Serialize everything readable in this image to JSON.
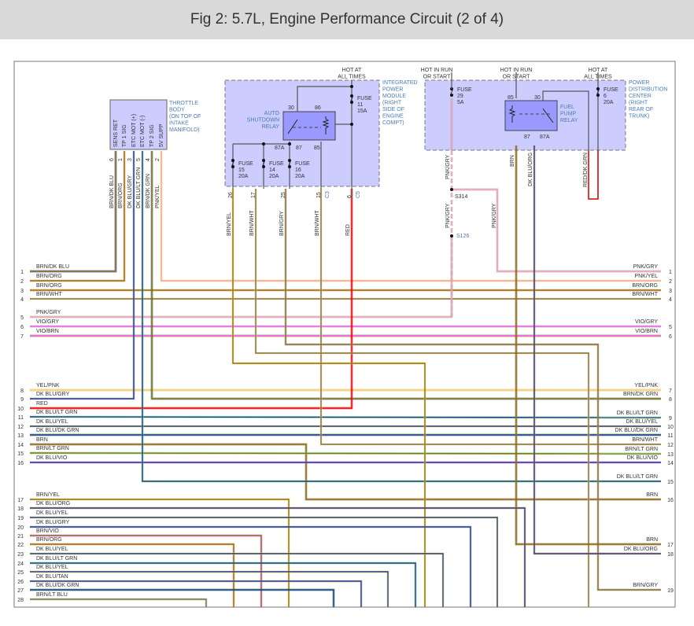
{
  "title": "Fig 2: 5.7L, Engine Performance Circuit (2 of 4)",
  "colors": {
    "BRN": "#8c6d1f",
    "ORG": "#f0a040",
    "DK BLU": "#1f3a93",
    "LT GRN": "#6ad96a",
    "YEL": "#f2dc4a",
    "PNK": "#f5a0b0",
    "GRY": "#a8a8a8",
    "VIO": "#f060f0",
    "RED": "#e81010",
    "WHT": "#d8d8d8",
    "DK GRN": "#2a7a4a",
    "TAN": "#d2b48c",
    "LT BLU": "#8cc8e8",
    "component_fill": "#ccccff",
    "relay_fill": "#9999ff",
    "label_blue": "#4a7ab8"
  },
  "throttle_body": {
    "label": [
      "THROTTLE",
      "BODY",
      "(ON TOP OF",
      "INTAKE",
      "MANIFOLD)"
    ],
    "pins": [
      {
        "name": "SENS RET",
        "num": "6",
        "wire": "BRN/DK BLU"
      },
      {
        "name": "TP 1 SIG",
        "num": "1",
        "wire": "BRN/ORG"
      },
      {
        "name": "ETC MOT (+)",
        "num": "3",
        "wire": "DK BLU/GRY"
      },
      {
        "name": "ETC MOT (-)",
        "num": "5",
        "wire": "DK BLU/LT GRN"
      },
      {
        "name": "TP 2 SIG",
        "num": "4",
        "wire": "BRN/DK GRN"
      },
      {
        "name": "5V SUPP",
        "num": "2",
        "wire": "PNK/YEL"
      }
    ]
  },
  "ipm": {
    "label": [
      "INTEGRATED",
      "POWER",
      "MODULE",
      "(RIGHT",
      "SIDE OF",
      "ENGINE",
      "COMPT)"
    ],
    "hot": [
      "HOT AT",
      "ALL TIMES"
    ],
    "relay": {
      "label": [
        "AUTO",
        "SHUTDOWN",
        "RELAY"
      ],
      "terminals": [
        "30",
        "86",
        "87A",
        "87",
        "85"
      ]
    },
    "fuses": [
      {
        "label": "FUSE",
        "num": "11",
        "amps": "15A"
      },
      {
        "label": "FUSE",
        "num": "15",
        "amps": "20A"
      },
      {
        "label": "FUSE",
        "num": "14",
        "amps": "20A"
      },
      {
        "label": "FUSE",
        "num": "16",
        "amps": "20A"
      }
    ],
    "pins": [
      {
        "num": "26",
        "wire": "BRN/YEL"
      },
      {
        "num": "17",
        "wire": "BRN/WHT"
      },
      {
        "num": "25",
        "wire": "BRN/GRY"
      },
      {
        "num": "15",
        "wire": "BRN/WHT",
        "conn": "C3"
      },
      {
        "num": "6",
        "wire": "RED",
        "conn": "C5"
      }
    ]
  },
  "pdc": {
    "label": [
      "POWER",
      "DISTRIBUTION",
      "CENTER",
      "(RIGHT",
      "REAR OF",
      "TRUNK)"
    ],
    "hot_run_1": [
      "HOT IN RUN",
      "OR START"
    ],
    "hot_run_2": [
      "HOT IN RUN",
      "OR START"
    ],
    "hot_all": [
      "HOT AT",
      "ALL TIMES"
    ],
    "fuse29": {
      "label": "FUSE",
      "num": "29",
      "amps": "5A"
    },
    "fuse6": {
      "label": "FUSE",
      "num": "6",
      "amps": "20A"
    },
    "relay": {
      "label": [
        "FUEL",
        "PUMP",
        "RELAY"
      ],
      "terminals": [
        "85",
        "30",
        "87",
        "87A"
      ]
    },
    "wires": [
      "PNK/GRY",
      "BRN",
      "DK BLU/ORG",
      "RED/DK GRN"
    ]
  },
  "splices": {
    "s314": "S314",
    "s126": "S126",
    "wires": [
      "PNK/GRY",
      "PNK/GRY"
    ]
  },
  "left_connector": [
    {
      "num": "1",
      "wire": "BRN/DK BLU"
    },
    {
      "num": "2",
      "wire": "BRN/ORG"
    },
    {
      "num": "3",
      "wire": "BRN/ORG"
    },
    {
      "num": "4",
      "wire": "BRN/WHT"
    },
    {
      "num": "5",
      "wire": "PNK/GRY"
    },
    {
      "num": "6",
      "wire": "VIO/GRY"
    },
    {
      "num": "7",
      "wire": "VIO/BRN"
    },
    {
      "num": "8",
      "wire": "YEL/PNK"
    },
    {
      "num": "9",
      "wire": "DK BLU/GRY"
    },
    {
      "num": "10",
      "wire": "RED"
    },
    {
      "num": "11",
      "wire": "DK BLU/LT GRN"
    },
    {
      "num": "12",
      "wire": "DK BLU/YEL"
    },
    {
      "num": "13",
      "wire": "DK BLU/DK GRN"
    },
    {
      "num": "14",
      "wire": "BRN"
    },
    {
      "num": "15",
      "wire": "BRN/LT GRN"
    },
    {
      "num": "16",
      "wire": "DK BLU/VIO"
    },
    {
      "num": "17",
      "wire": "BRN/YEL"
    },
    {
      "num": "18",
      "wire": "DK BLU/ORG"
    },
    {
      "num": "19",
      "wire": "DK BLU/YEL"
    },
    {
      "num": "20",
      "wire": "DK BLU/GRY"
    },
    {
      "num": "21",
      "wire": "BRN/VIO"
    },
    {
      "num": "22",
      "wire": "BRN/ORG"
    },
    {
      "num": "23",
      "wire": "DK BLU/YEL"
    },
    {
      "num": "24",
      "wire": "DK BLU/LT GRN"
    },
    {
      "num": "25",
      "wire": "DK BLU/YEL"
    },
    {
      "num": "26",
      "wire": "DK BLU/TAN"
    },
    {
      "num": "27",
      "wire": "DK BLU/DK GRN"
    },
    {
      "num": "28",
      "wire": "BRN/LT BLU"
    }
  ],
  "right_connector": [
    {
      "num": "1",
      "wire": "PNK/GRY"
    },
    {
      "num": "2",
      "wire": "PNK/YEL"
    },
    {
      "num": "3",
      "wire": "BRN/ORG"
    },
    {
      "num": "4",
      "wire": "BRN/WHT"
    },
    {
      "num": "5",
      "wire": "VIO/GRY"
    },
    {
      "num": "6",
      "wire": "VIO/BRN"
    },
    {
      "num": "7",
      "wire": "YEL/PNK"
    },
    {
      "num": "8",
      "wire": "BRN/DK GRN"
    },
    {
      "num": "9",
      "wire": "DK BLU/LT GRN"
    },
    {
      "num": "10",
      "wire": "DK BLU/YEL"
    },
    {
      "num": "11",
      "wire": "DK BLU/DK GRN"
    },
    {
      "num": "12",
      "wire": "BRN/WHT"
    },
    {
      "num": "13",
      "wire": "BRN/LT GRN"
    },
    {
      "num": "14",
      "wire": "DK BLU/VIO"
    },
    {
      "num": "15",
      "wire": "DK BLU/LT GRN"
    },
    {
      "num": "16",
      "wire": "BRN"
    },
    {
      "num": "17",
      "wire": "BRN"
    },
    {
      "num": "18",
      "wire": "DK BLU/ORG"
    },
    {
      "num": "19",
      "wire": "BRN/GRY"
    }
  ]
}
